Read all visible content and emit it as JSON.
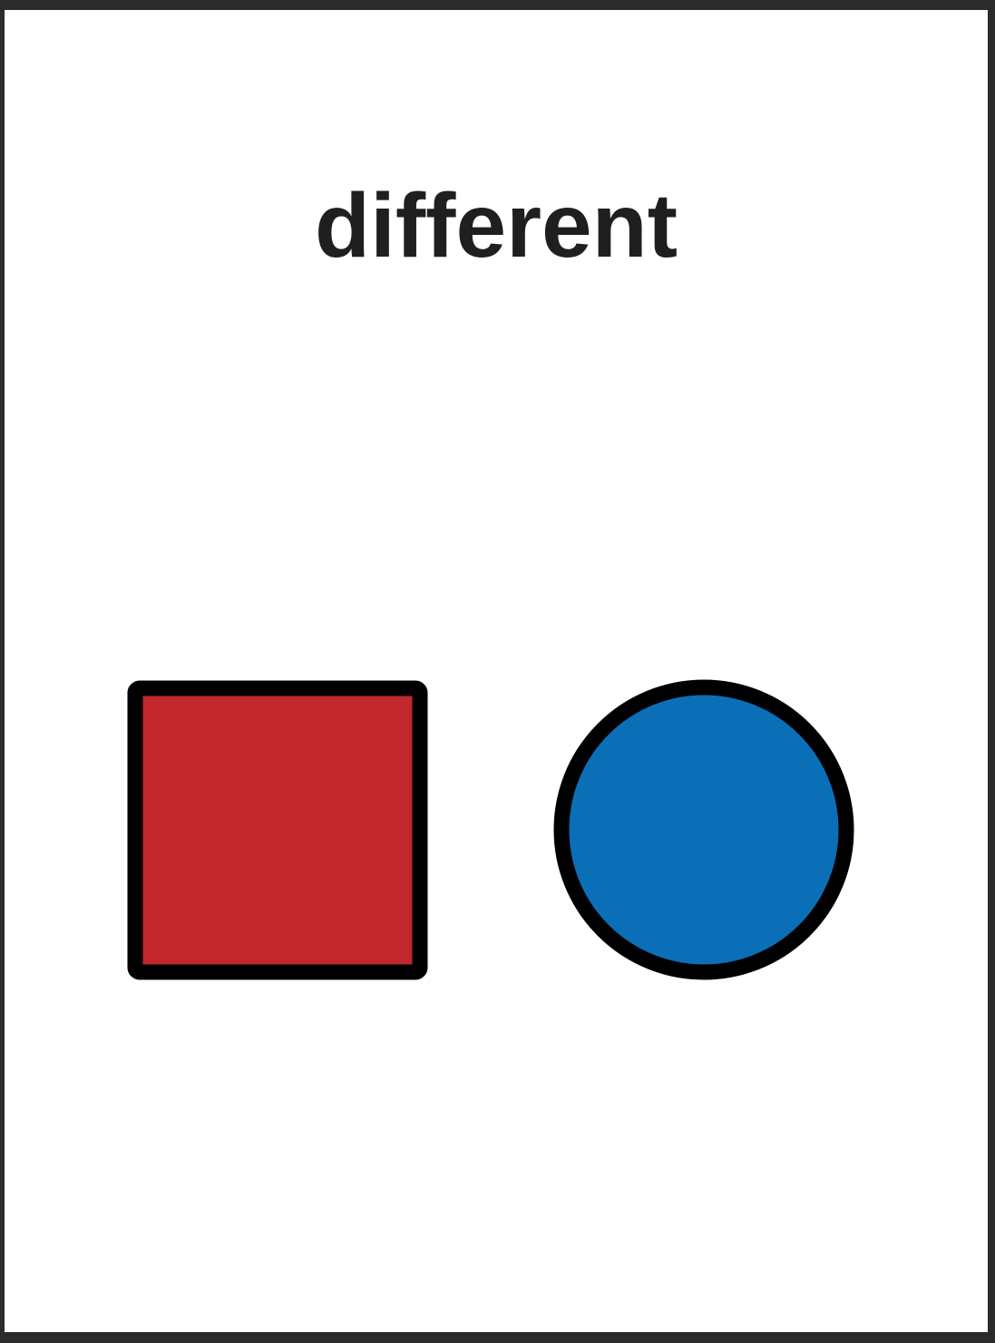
{
  "card": {
    "word": "different"
  },
  "shapes": {
    "square": {
      "name": "square",
      "fill": "#c1272d",
      "stroke": "#000000"
    },
    "circle": {
      "name": "circle",
      "fill": "#0b6fb8",
      "stroke": "#000000"
    }
  }
}
